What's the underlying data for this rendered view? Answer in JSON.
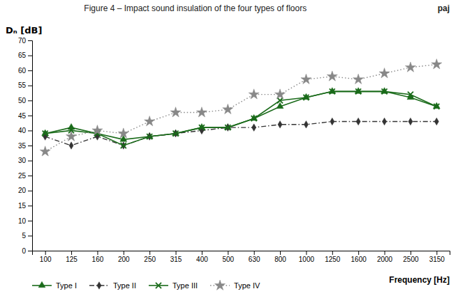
{
  "chart_data": {
    "type": "line",
    "title": "Figure 4 – Impact sound insulation of the four types of floors",
    "annotations": [
      "paj"
    ],
    "x_label": "Frequency [Hz]",
    "y_label": "Dₙ [dB]",
    "categories": [
      "100",
      "125",
      "160",
      "200",
      "250",
      "315",
      "400",
      "500",
      "630",
      "800",
      "1000",
      "1250",
      "1600",
      "2000",
      "2500",
      "3150"
    ],
    "series": [
      {
        "name": "Type I",
        "color": "#1a6b1a",
        "marker": "triangle",
        "line_style": "solid",
        "values": [
          39,
          41,
          39,
          37,
          38,
          39,
          41,
          41,
          44,
          48,
          51,
          53,
          53,
          53,
          51,
          48
        ]
      },
      {
        "name": "Type II",
        "color": "#333333",
        "marker": "diamond",
        "line_style": "dashdot",
        "values": [
          38,
          35,
          38,
          35,
          38,
          39,
          40,
          41,
          41,
          42,
          42,
          43,
          43,
          43,
          43,
          43
        ]
      },
      {
        "name": "Type III",
        "color": "#1a6b1a",
        "marker": "x",
        "line_style": "solid",
        "values": [
          39,
          40,
          39,
          35,
          38,
          39,
          41,
          41,
          44,
          50,
          51,
          53,
          53,
          53,
          52,
          48
        ]
      },
      {
        "name": "Type IV",
        "color": "#888888",
        "marker": "star",
        "line_style": "dotted",
        "values": [
          33,
          38,
          40,
          39,
          43,
          46,
          46,
          47,
          52,
          52,
          57,
          58,
          57,
          59,
          61,
          62
        ]
      }
    ],
    "ylim": [
      0,
      70
    ],
    "yticks": [
      0,
      5,
      10,
      15,
      20,
      25,
      30,
      35,
      40,
      45,
      50,
      55,
      60,
      65,
      70
    ],
    "grid": false,
    "legend": "bottom"
  }
}
